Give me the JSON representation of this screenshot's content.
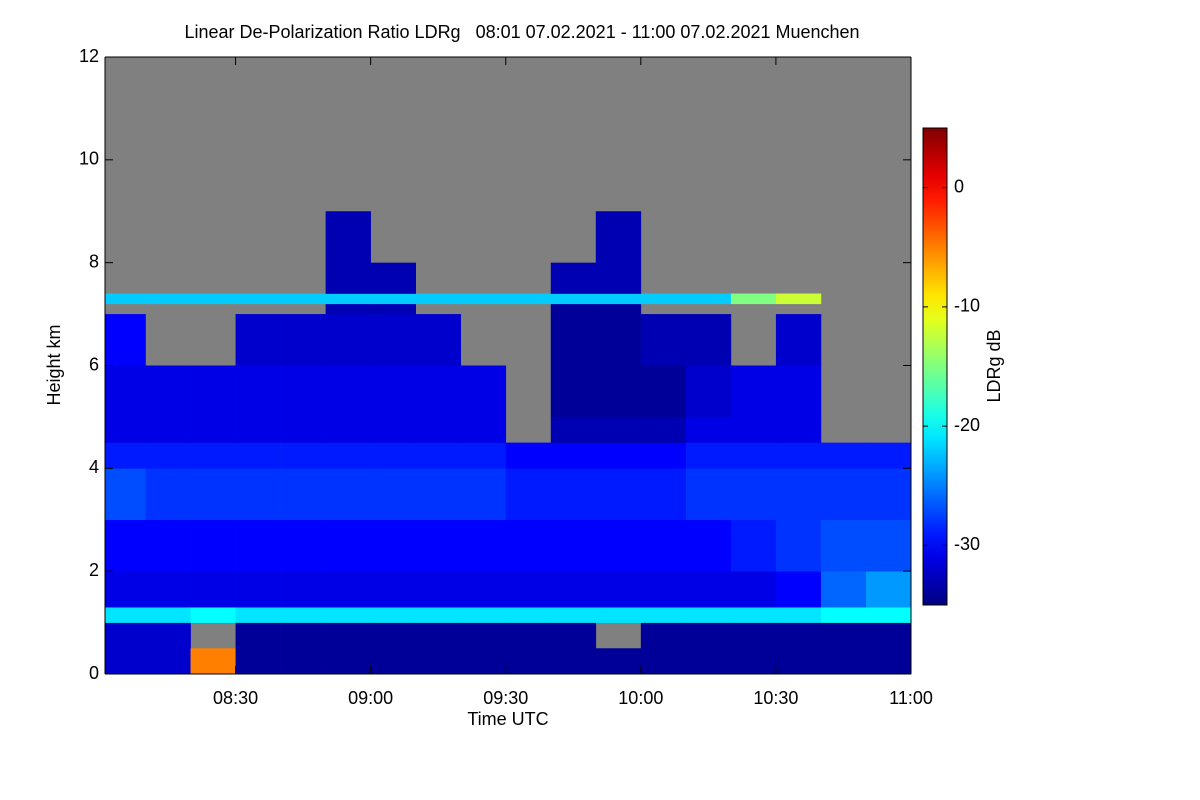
{
  "chart_data": {
    "type": "heatmap",
    "title": "Linear De-Polarization Ratio LDRg   08:01 07.02.2021 - 11:00 07.02.2021 Muenchen",
    "xlabel": "Time UTC",
    "ylabel": "Height km",
    "colorbar_label": "LDRg dB",
    "colormap": "jet",
    "null_color": "#808080",
    "xlim": [
      481,
      660
    ],
    "ylim": [
      0,
      12
    ],
    "clim": [
      -35,
      5
    ],
    "xticks": [
      {
        "value": 510,
        "label": "08:30"
      },
      {
        "value": 540,
        "label": "09:00"
      },
      {
        "value": 570,
        "label": "09:30"
      },
      {
        "value": 600,
        "label": "10:00"
      },
      {
        "value": 630,
        "label": "10:30"
      },
      {
        "value": 660,
        "label": "11:00"
      }
    ],
    "yticks": [
      0,
      2,
      4,
      6,
      8,
      10,
      12
    ],
    "cticks": [
      -30,
      -20,
      -10,
      0
    ],
    "xbins": [
      481,
      490,
      500,
      510,
      520,
      530,
      540,
      550,
      560,
      570,
      580,
      590,
      600,
      610,
      620,
      630,
      640,
      650,
      660
    ],
    "ybins": [
      0,
      0.5,
      1.0,
      1.3,
      2,
      3,
      4,
      4.5,
      5,
      6,
      7,
      7.2,
      7.4,
      8,
      9,
      12
    ],
    "z": [
      [
        -32,
        -32,
        -5,
        -34,
        -34,
        -34,
        -34,
        -34,
        -34,
        -34,
        -34,
        -34,
        -34,
        -34,
        -34,
        -34,
        -34,
        -34
      ],
      [
        -32,
        -32,
        null,
        -34,
        -34,
        -34,
        -34,
        -34,
        -34,
        -34,
        -34,
        null,
        -34,
        -34,
        -34,
        -34,
        -34,
        -34
      ],
      [
        -21,
        -21,
        -20,
        -21,
        -21,
        -21,
        -21,
        -21,
        -21,
        -21,
        -21,
        -21,
        -21,
        -21,
        -21,
        -21,
        -20,
        -20
      ],
      [
        -31,
        -31,
        -31,
        -31,
        -31,
        -31,
        -31,
        -31,
        -31,
        -31,
        -31,
        -31,
        -31,
        -31,
        -31,
        -30,
        -26,
        -24
      ],
      [
        -30,
        -30,
        -30,
        -30,
        -30,
        -30,
        -30,
        -30,
        -30,
        -30,
        -30,
        -30,
        -30,
        -30,
        -29,
        -28,
        -27,
        -27
      ],
      [
        -27,
        -28,
        -28,
        -28,
        -28,
        -28,
        -28,
        -28,
        -28,
        -29,
        -29,
        -29,
        -29,
        -28,
        -28,
        -28,
        -28,
        -28
      ],
      [
        -29,
        -29,
        -29,
        -29,
        -29,
        -29,
        -29,
        -29,
        -29,
        -30,
        -30,
        -30,
        -30,
        -29,
        -29,
        -29,
        -29,
        -29
      ],
      [
        -31,
        -31,
        -31,
        -31,
        -31,
        -31,
        -31,
        -31,
        -31,
        null,
        -33,
        -33,
        -33,
        -31,
        -31,
        -31,
        null,
        null
      ],
      [
        -31,
        -31,
        -31,
        -31,
        -31,
        -31,
        -31,
        -31,
        -31,
        null,
        -34,
        -34,
        -34,
        -32,
        -31,
        -31,
        null,
        null
      ],
      [
        -30,
        null,
        null,
        -32,
        -32,
        -32,
        -32,
        -32,
        null,
        null,
        -34,
        -34,
        -33,
        -33,
        null,
        -32,
        null,
        null
      ],
      [
        null,
        null,
        null,
        null,
        null,
        -33,
        -33,
        null,
        null,
        null,
        -34,
        -34,
        null,
        null,
        null,
        null,
        null,
        null
      ],
      [
        -22,
        -22,
        -22,
        -22,
        -22,
        -22,
        -22,
        -22,
        -22,
        -22,
        -22,
        -22,
        -22,
        -22,
        -15,
        -12,
        null,
        null
      ],
      [
        null,
        null,
        null,
        null,
        null,
        -33,
        -33,
        null,
        null,
        null,
        -33,
        -33,
        null,
        null,
        null,
        null,
        null,
        null
      ],
      [
        null,
        null,
        null,
        null,
        null,
        -33,
        null,
        null,
        null,
        null,
        null,
        -33,
        null,
        null,
        null,
        null,
        null,
        null
      ],
      [
        null,
        null,
        null,
        null,
        null,
        null,
        null,
        null,
        null,
        null,
        null,
        null,
        null,
        null,
        null,
        null,
        null,
        null
      ]
    ]
  }
}
